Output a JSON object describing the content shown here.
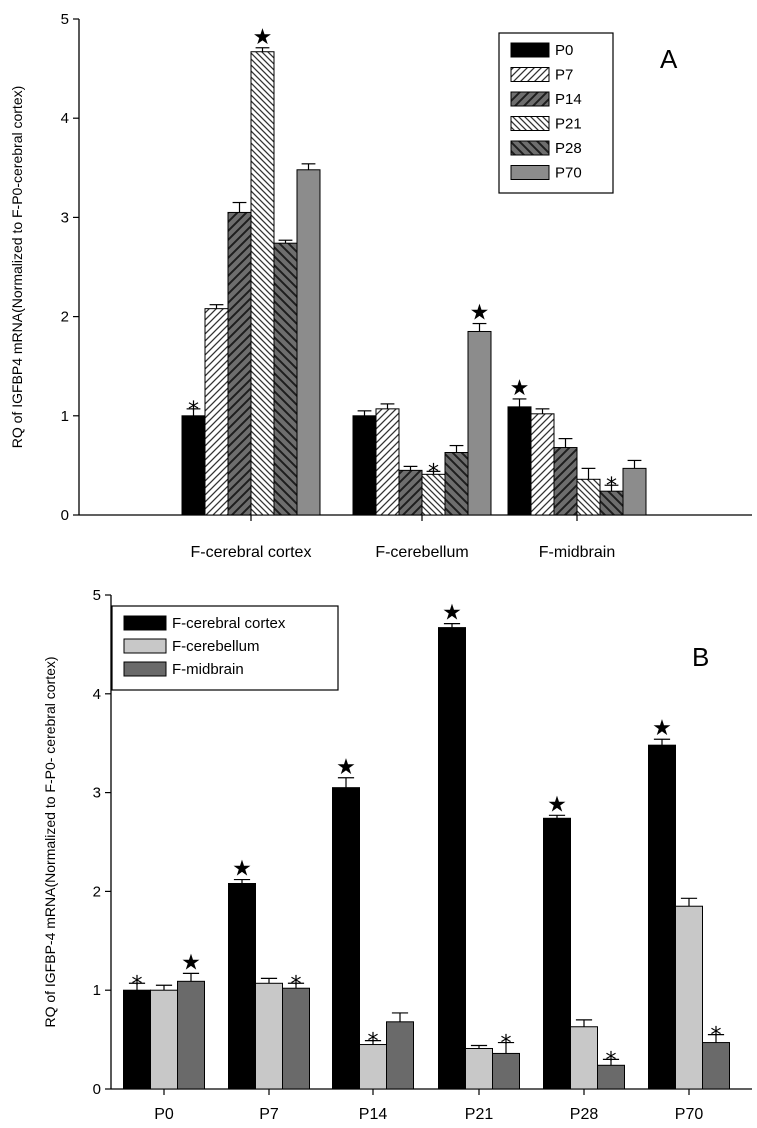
{
  "chart_data": [
    {
      "panel": "A",
      "type": "bar",
      "ylabel": "RQ of IGFBP4 mRNA(Normalized to F-P0-cerebral cortex)",
      "xlabel": "",
      "ylim": [
        0,
        5
      ],
      "yticks": [
        "0",
        "1",
        "2",
        "3",
        "4",
        "5"
      ],
      "categories": [
        "F-cerebral cortex",
        "F-cerebellum",
        "F-midbrain"
      ],
      "legend_position": "top-right",
      "series": [
        {
          "name": "P0",
          "color": "#000000",
          "pattern": "solid",
          "values": [
            1.0,
            1.0,
            1.09
          ],
          "errors": [
            0.07,
            0.05,
            0.08
          ],
          "markers": [
            "*",
            "",
            "★"
          ]
        },
        {
          "name": "P7",
          "color": "#ffffff",
          "pattern": "hatch-fwd-light",
          "values": [
            2.08,
            1.07,
            1.02
          ],
          "errors": [
            0.04,
            0.05,
            0.05
          ],
          "markers": [
            "",
            "",
            ""
          ]
        },
        {
          "name": "P14",
          "color": "#707070",
          "pattern": "hatch-fwd-dark",
          "values": [
            3.05,
            0.45,
            0.68
          ],
          "errors": [
            0.1,
            0.04,
            0.09
          ],
          "markers": [
            "",
            "",
            ""
          ]
        },
        {
          "name": "P21",
          "color": "#ffffff",
          "pattern": "hatch-back-light",
          "values": [
            4.67,
            0.41,
            0.36
          ],
          "errors": [
            0.04,
            0.03,
            0.11
          ],
          "markers": [
            "★",
            "*",
            ""
          ]
        },
        {
          "name": "P28",
          "color": "#707070",
          "pattern": "hatch-back-dark",
          "values": [
            2.74,
            0.63,
            0.24
          ],
          "errors": [
            0.03,
            0.07,
            0.06
          ],
          "markers": [
            "",
            "",
            "*"
          ]
        },
        {
          "name": "P70",
          "color": "#8c8c8c",
          "pattern": "solid",
          "values": [
            3.48,
            1.85,
            0.47
          ],
          "errors": [
            0.06,
            0.08,
            0.08
          ],
          "markers": [
            "",
            "★",
            ""
          ]
        }
      ]
    },
    {
      "panel": "B",
      "type": "bar",
      "ylabel": "RQ of IGFBP-4 mRNA(Normalized to F-P0- cerebral cortex)",
      "xlabel": "",
      "ylim": [
        0,
        5
      ],
      "yticks": [
        "0",
        "1",
        "2",
        "3",
        "4",
        "5"
      ],
      "categories": [
        "P0",
        "P7",
        "P14",
        "P21",
        "P28",
        "P70"
      ],
      "legend_position": "top-left",
      "series": [
        {
          "name": "F-cerebral cortex",
          "color": "#000000",
          "values": [
            1.0,
            2.08,
            3.05,
            4.67,
            2.74,
            3.48
          ],
          "errors": [
            0.07,
            0.04,
            0.1,
            0.04,
            0.03,
            0.06
          ],
          "markers": [
            "*",
            "★",
            "★",
            "★",
            "★",
            "★"
          ]
        },
        {
          "name": "F-cerebellum",
          "color": "#c8c8c8",
          "values": [
            1.0,
            1.07,
            0.45,
            0.41,
            0.63,
            1.85
          ],
          "errors": [
            0.05,
            0.05,
            0.04,
            0.03,
            0.07,
            0.08
          ],
          "markers": [
            "",
            "",
            "*",
            "",
            "",
            ""
          ]
        },
        {
          "name": "F-midbrain",
          "color": "#6a6a6a",
          "values": [
            1.09,
            1.02,
            0.68,
            0.36,
            0.24,
            0.47
          ],
          "errors": [
            0.08,
            0.05,
            0.09,
            0.11,
            0.06,
            0.08
          ],
          "markers": [
            "★",
            "*",
            "",
            "*",
            "*",
            "*"
          ]
        }
      ]
    }
  ]
}
